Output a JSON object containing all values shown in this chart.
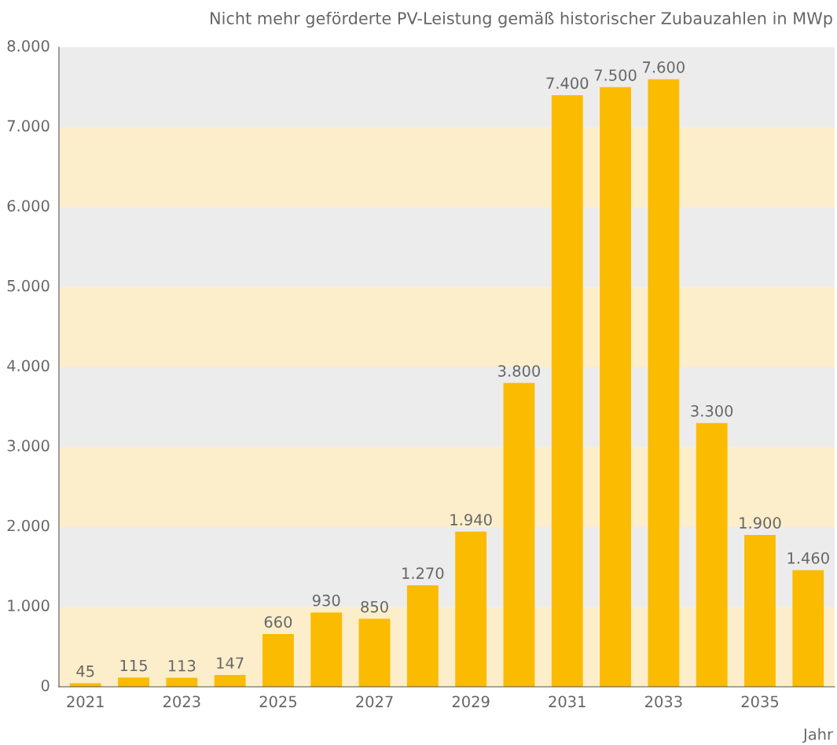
{
  "chart_data": {
    "type": "bar",
    "title": "Nicht mehr geförderte PV-Leistung gemäß historischer Zubauzahlen in MWp",
    "xlabel": "Jahr",
    "categories": [
      "2021",
      null,
      "2023",
      null,
      "2025",
      null,
      "2027",
      null,
      "2029",
      null,
      "2031",
      null,
      "2033",
      null,
      "2035",
      null
    ],
    "values": [
      45,
      115,
      113,
      147,
      660,
      930,
      850,
      1270,
      1940,
      3800,
      7400,
      7500,
      7600,
      3300,
      1900,
      1460
    ],
    "value_labels": [
      "45",
      "115",
      "113",
      "147",
      "660",
      "930",
      "850",
      "1.270",
      "1.940",
      "3.800",
      "7.400",
      "7.500",
      "7.600",
      "3.300",
      "1.900",
      "1.460"
    ],
    "color": "#fbbb00",
    "ylim": [
      0,
      8000
    ],
    "yticks": [
      0,
      {
        "value": 1000,
        "label": "1.000"
      },
      {
        "value": 2000,
        "label": "2.000"
      },
      {
        "value": 3000,
        "label": "3.000"
      },
      {
        "value": 4000,
        "label": "4.000"
      },
      {
        "value": 5000,
        "label": "5.000"
      },
      {
        "value": 6000,
        "label": "6.000"
      },
      {
        "value": 7000,
        "label": "7.000"
      },
      {
        "value": 8000,
        "label": "8.000"
      }
    ],
    "bands": [
      {
        "axis": "y",
        "from": 0,
        "to": 1000,
        "color": "#fdeecb"
      },
      {
        "axis": "y",
        "from": 2000,
        "to": 3000,
        "color": "#fdeecb"
      },
      {
        "axis": "y",
        "from": 4000,
        "to": 5000,
        "color": "#fdeecb"
      },
      {
        "axis": "y",
        "from": 6000,
        "to": 7000,
        "color": "#fdeecb"
      }
    ]
  }
}
